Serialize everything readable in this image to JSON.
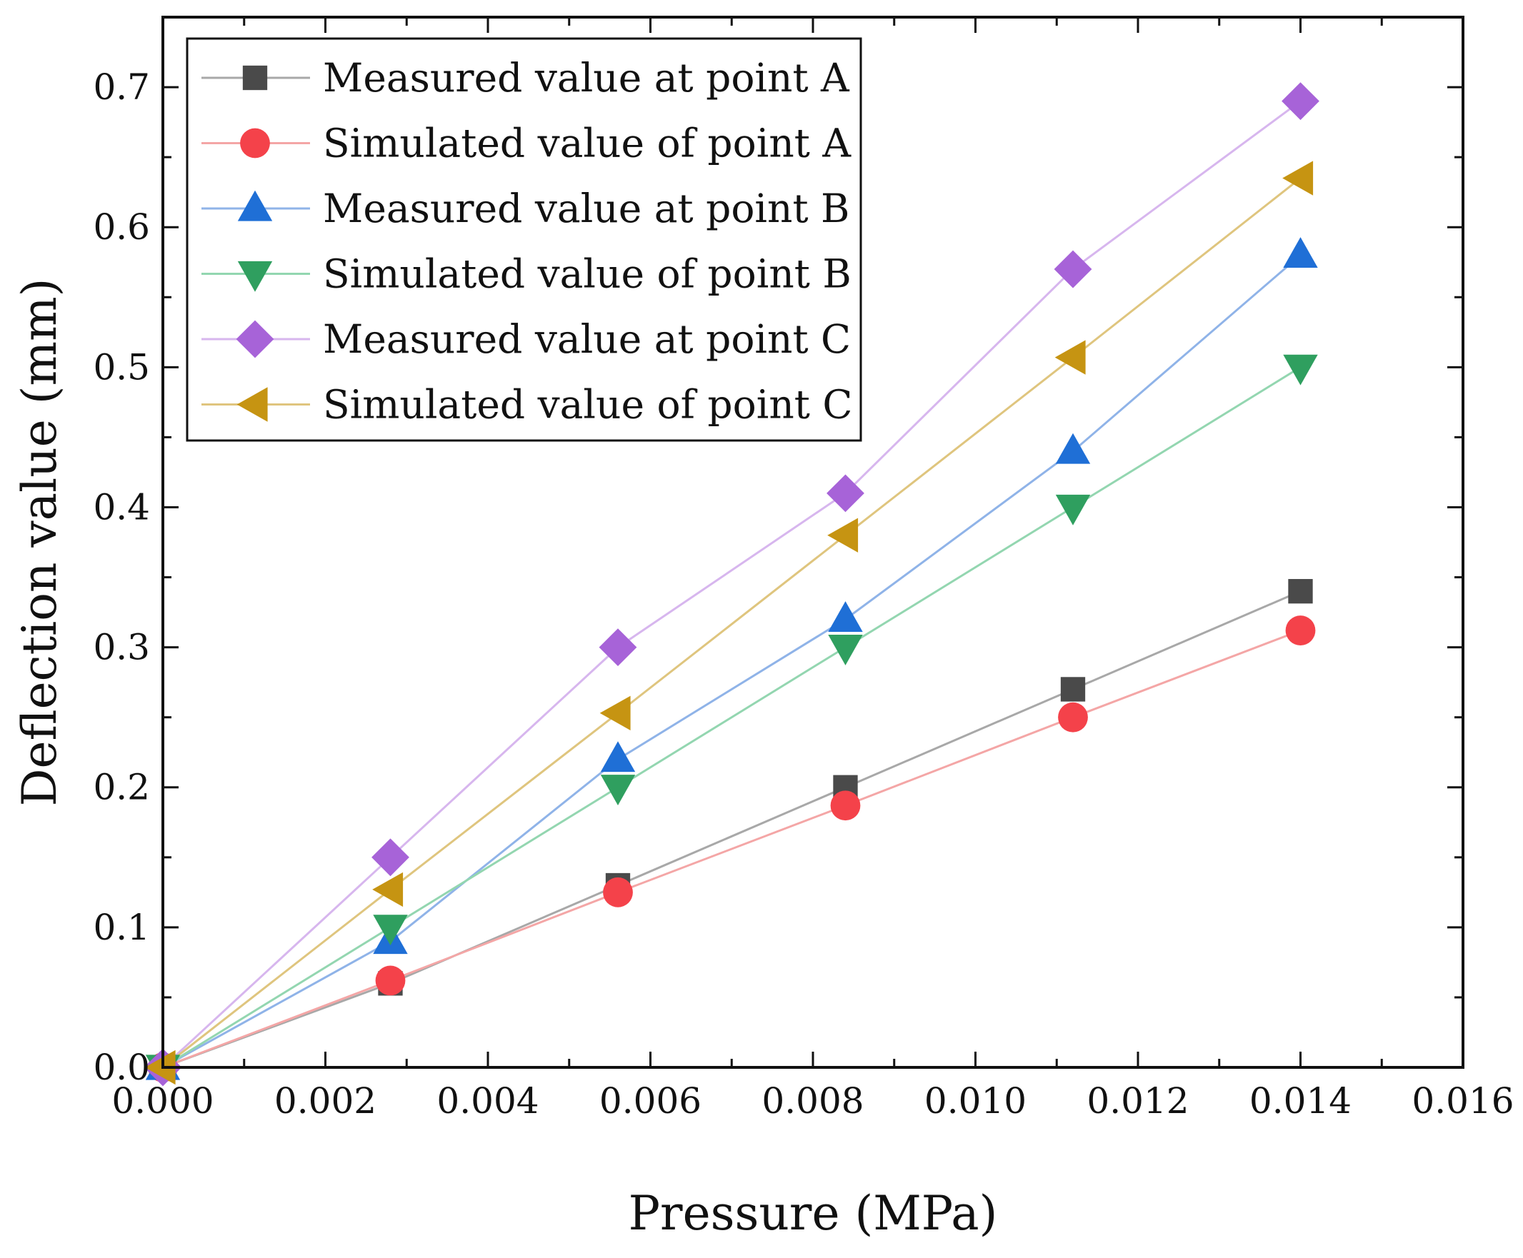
{
  "chart_data": {
    "type": "line",
    "title": "",
    "xlabel": "Pressure (MPa)",
    "ylabel": "Deflection value (mm)",
    "xlim": [
      0,
      0.016
    ],
    "ylim": [
      0,
      0.75
    ],
    "xticks": [
      0,
      0.002,
      0.004,
      0.006,
      0.008,
      0.01,
      0.012,
      0.014,
      0.016
    ],
    "xtick_labels": [
      "0.000",
      "0.002",
      "0.004",
      "0.006",
      "0.008",
      "0.010",
      "0.012",
      "0.014",
      "0.016"
    ],
    "yticks": [
      0,
      0.1,
      0.2,
      0.3,
      0.4,
      0.5,
      0.6,
      0.7
    ],
    "ytick_labels": [
      "0.0",
      "0.1",
      "0.2",
      "0.3",
      "0.4",
      "0.5",
      "0.6",
      "0.7"
    ],
    "grid": false,
    "legend_position": "top-left",
    "x": [
      0,
      0.0028,
      0.0056,
      0.0084,
      0.0112,
      0.014
    ],
    "series": [
      {
        "name": "Measured value at point A",
        "marker": "square",
        "line_color": "#a8a8a8",
        "marker_color": "#4a4a4a",
        "values": [
          0,
          0.06,
          0.13,
          0.2,
          0.27,
          0.34
        ]
      },
      {
        "name": "Simulated value of point A",
        "marker": "circle",
        "line_color": "#f4a6a6",
        "marker_color": "#f4424a",
        "values": [
          0,
          0.062,
          0.125,
          0.187,
          0.25,
          0.312
        ]
      },
      {
        "name": "Measured value at point B",
        "marker": "triangle-up",
        "line_color": "#8fb3e8",
        "marker_color": "#1f6fd6",
        "values": [
          0,
          0.09,
          0.22,
          0.32,
          0.44,
          0.58
        ]
      },
      {
        "name": "Simulated value of point B",
        "marker": "triangle-down",
        "line_color": "#93d6b0",
        "marker_color": "#2f9f5f",
        "values": [
          0,
          0.1,
          0.2,
          0.3,
          0.4,
          0.5
        ]
      },
      {
        "name": "Measured value at point C",
        "marker": "diamond",
        "line_color": "#d7b6ee",
        "marker_color": "#a763d8",
        "values": [
          0,
          0.15,
          0.3,
          0.41,
          0.57,
          0.69
        ]
      },
      {
        "name": "Simulated value of point C",
        "marker": "triangle-left",
        "line_color": "#dfc57e",
        "marker_color": "#c69412",
        "values": [
          0,
          0.127,
          0.253,
          0.38,
          0.507,
          0.635
        ]
      }
    ]
  }
}
